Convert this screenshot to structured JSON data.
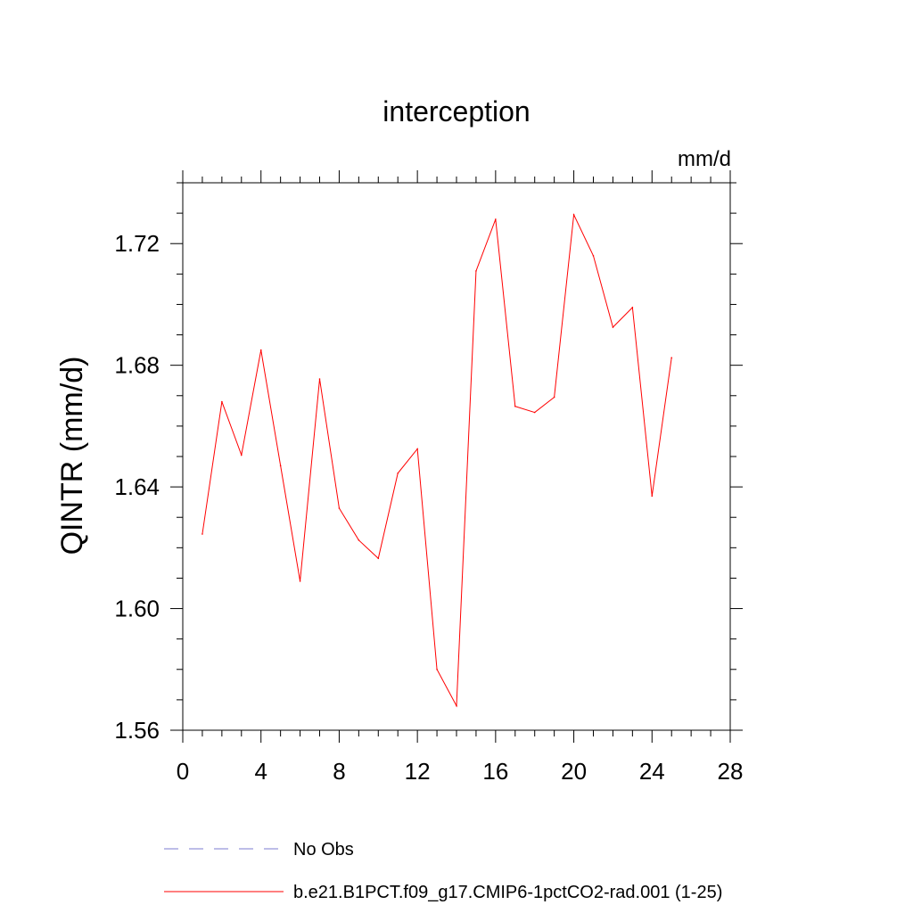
{
  "chart_data": {
    "type": "line",
    "title": "interception",
    "units_label": "mm/d",
    "ylabel": "QINTR  (mm/d)",
    "xlabel": "",
    "xlim": [
      0,
      28
    ],
    "ylim": [
      1.56,
      1.74
    ],
    "xticks": [
      0,
      4,
      8,
      12,
      16,
      20,
      24,
      28
    ],
    "xtick_labels": [
      "0",
      "4",
      "8",
      "12",
      "16",
      "20",
      "24",
      "28"
    ],
    "yticks": [
      1.56,
      1.6,
      1.64,
      1.68,
      1.72
    ],
    "ytick_labels": [
      "1.56",
      "1.60",
      "1.64",
      "1.68",
      "1.72"
    ],
    "grid": false,
    "legend_position": "bottom",
    "series": [
      {
        "name": "No Obs",
        "color": "#7b7bd1",
        "style": "dashed",
        "x": [],
        "y": []
      },
      {
        "name": "b.e21.B1PCT.f09_g17.CMIP6-1pctCO2-rad.001 (1-25)",
        "color": "#ff0000",
        "style": "solid",
        "x": [
          1,
          2,
          3,
          4,
          5,
          6,
          7,
          8,
          9,
          10,
          11,
          12,
          13,
          14,
          15,
          16,
          17,
          18,
          19,
          20,
          21,
          22,
          23,
          24,
          25
        ],
        "y": [
          1.6245,
          1.668,
          1.6505,
          1.685,
          1.647,
          1.609,
          1.6755,
          1.633,
          1.6225,
          1.6165,
          1.6445,
          1.6525,
          1.58,
          1.568,
          1.711,
          1.728,
          1.6665,
          1.6645,
          1.6695,
          1.7295,
          1.716,
          1.6925,
          1.699,
          1.637,
          1.6825
        ]
      }
    ]
  }
}
